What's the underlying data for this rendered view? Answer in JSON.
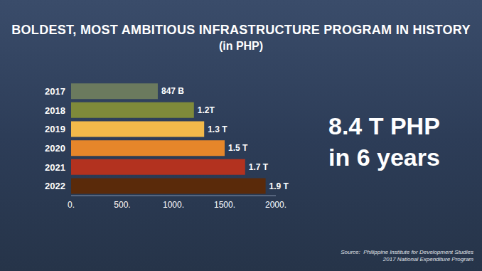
{
  "chart_data": {
    "type": "bar",
    "orientation": "horizontal",
    "title": "BOLDEST, MOST AMBITIOUS INFRASTRUCTURE PROGRAM IN HISTORY",
    "subtitle": "(in PHP)",
    "categories": [
      "2017",
      "2018",
      "2019",
      "2020",
      "2021",
      "2022"
    ],
    "values": [
      847,
      1200,
      1300,
      1500,
      1700,
      1900
    ],
    "value_labels": [
      "847 B",
      "1.2T",
      "1.3 T",
      "1.5 T",
      "1.7 T",
      "1.9 T"
    ],
    "colors": [
      "#6b7a5e",
      "#7f8a3a",
      "#f2b94a",
      "#e6862a",
      "#b3321f",
      "#5a2a0a"
    ],
    "xlim": [
      0,
      2000
    ],
    "xticks": [
      {
        "value": 0,
        "label": "0."
      },
      {
        "value": 500,
        "label": "500."
      },
      {
        "value": 1000,
        "label": "1000."
      },
      {
        "value": 1500,
        "label": "1500."
      },
      {
        "value": 2000,
        "label": "2000."
      }
    ],
    "data_labels": true,
    "grid": false,
    "annotations": [
      "8.4 T PHP",
      "in 6 years"
    ],
    "source": [
      "Source:  Philippine Institute for Development Studies",
      "2017 National Expenditure Program"
    ]
  }
}
